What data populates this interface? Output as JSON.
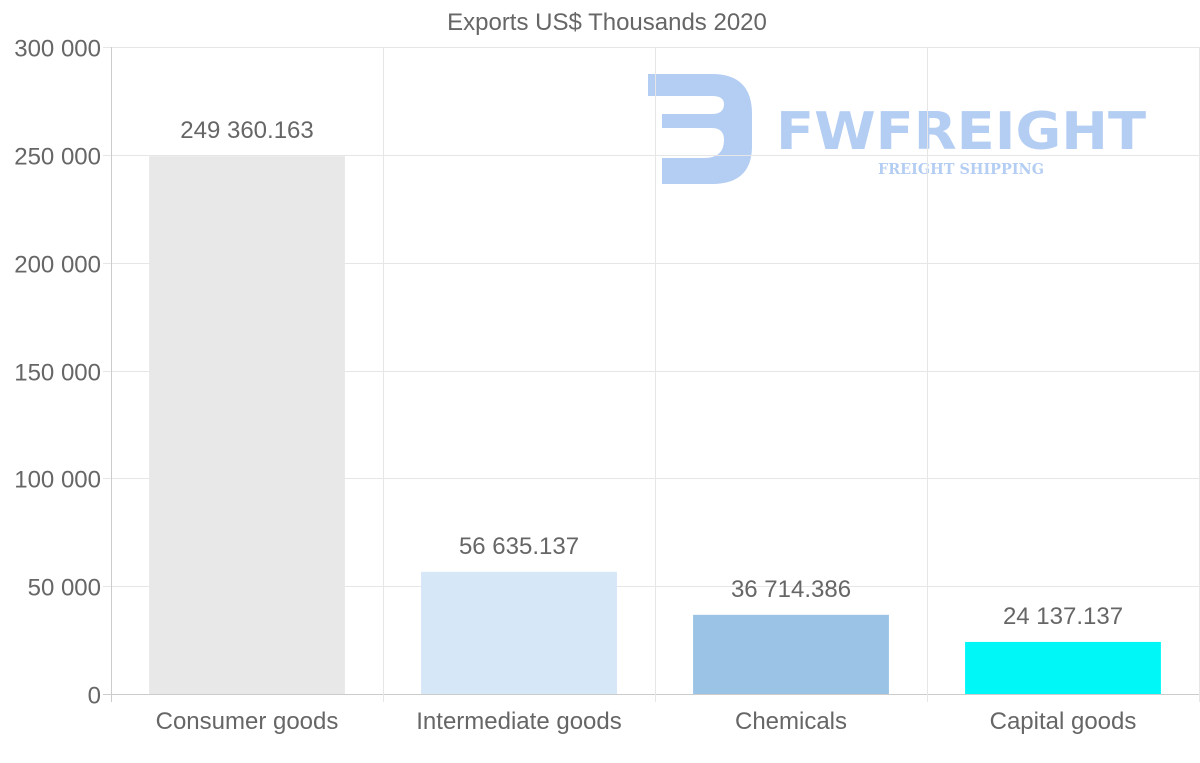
{
  "chart_data": {
    "type": "bar",
    "title": "Exports US$ Thousands 2020",
    "categories": [
      "Consumer goods",
      "Intermediate goods",
      "Chemicals",
      "Capital goods"
    ],
    "values": [
      249360.163,
      56635.137,
      36714.386,
      24137.137
    ],
    "value_labels": [
      "249 360.163",
      "56 635.137",
      "36 714.386",
      "24 137.137"
    ],
    "bar_colors": [
      "#e8e8e8",
      "#d6e7f8",
      "#9ac3e6",
      "#00f7f7"
    ],
    "ylim": [
      0,
      300000
    ],
    "yticks": [
      0,
      50000,
      100000,
      150000,
      200000,
      250000,
      300000
    ],
    "ytick_labels": [
      "0",
      "50 000",
      "100 000",
      "150 000",
      "200 000",
      "250 000",
      "300 000"
    ],
    "xlabel": "",
    "ylabel": "",
    "grid": true
  },
  "watermark": {
    "brand": "FWFREIGHT",
    "tagline": "FREIGHT SHIPPING",
    "color": "#b3cdf3"
  }
}
